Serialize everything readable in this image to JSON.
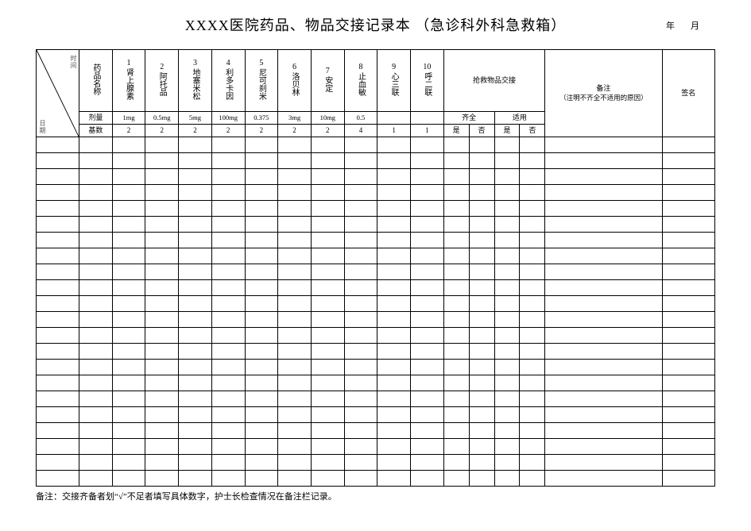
{
  "title": "XXXX医院药品、物品交接记录本 （急诊科外科急救箱）",
  "year_label": "年",
  "month_label": "月",
  "diag_top": "时间",
  "diag_bottom": "日期",
  "col_drugname": "药品名称",
  "drugs": [
    {
      "n": "1",
      "name": "肾上腺素",
      "dose": "1mg",
      "base": "2"
    },
    {
      "n": "2",
      "name": "阿托品",
      "dose": "0.5mg",
      "base": "2"
    },
    {
      "n": "3",
      "name": "地塞米松",
      "dose": "5mg",
      "base": "2"
    },
    {
      "n": "4",
      "name": "利多卡因",
      "dose": "100mg",
      "base": "2"
    },
    {
      "n": "5",
      "name": "尼可刹米",
      "dose": "0.375",
      "base": "2"
    },
    {
      "n": "6",
      "name": "洛贝林",
      "dose": "3mg",
      "base": "2"
    },
    {
      "n": "7",
      "name": "安定",
      "dose": "10mg",
      "base": "2"
    },
    {
      "n": "8",
      "name": "止血敏",
      "dose": "0.5",
      "base": "4"
    },
    {
      "n": "9",
      "name": "心三联",
      "dose": "",
      "base": "1"
    },
    {
      "n": "10",
      "name": "呼二联",
      "dose": "",
      "base": "1"
    }
  ],
  "row_dose": "剂量",
  "row_base": "基数",
  "exchange_header": "抢救物品交接",
  "exchange_sub1": "齐全",
  "exchange_sub2": "适用",
  "yes": "是",
  "no": "否",
  "note_header_l1": "备注",
  "note_header_l2": "（注明不齐全不适用的原因）",
  "sign_header": "签名",
  "footnote": "备注：交接齐备者划“√”不足者填写具体数字，护士长检查情况在备注栏记录。",
  "blank_rows": 22,
  "colors": {
    "line": "#000000",
    "bg": "#ffffff",
    "diag_text": "#666666"
  }
}
